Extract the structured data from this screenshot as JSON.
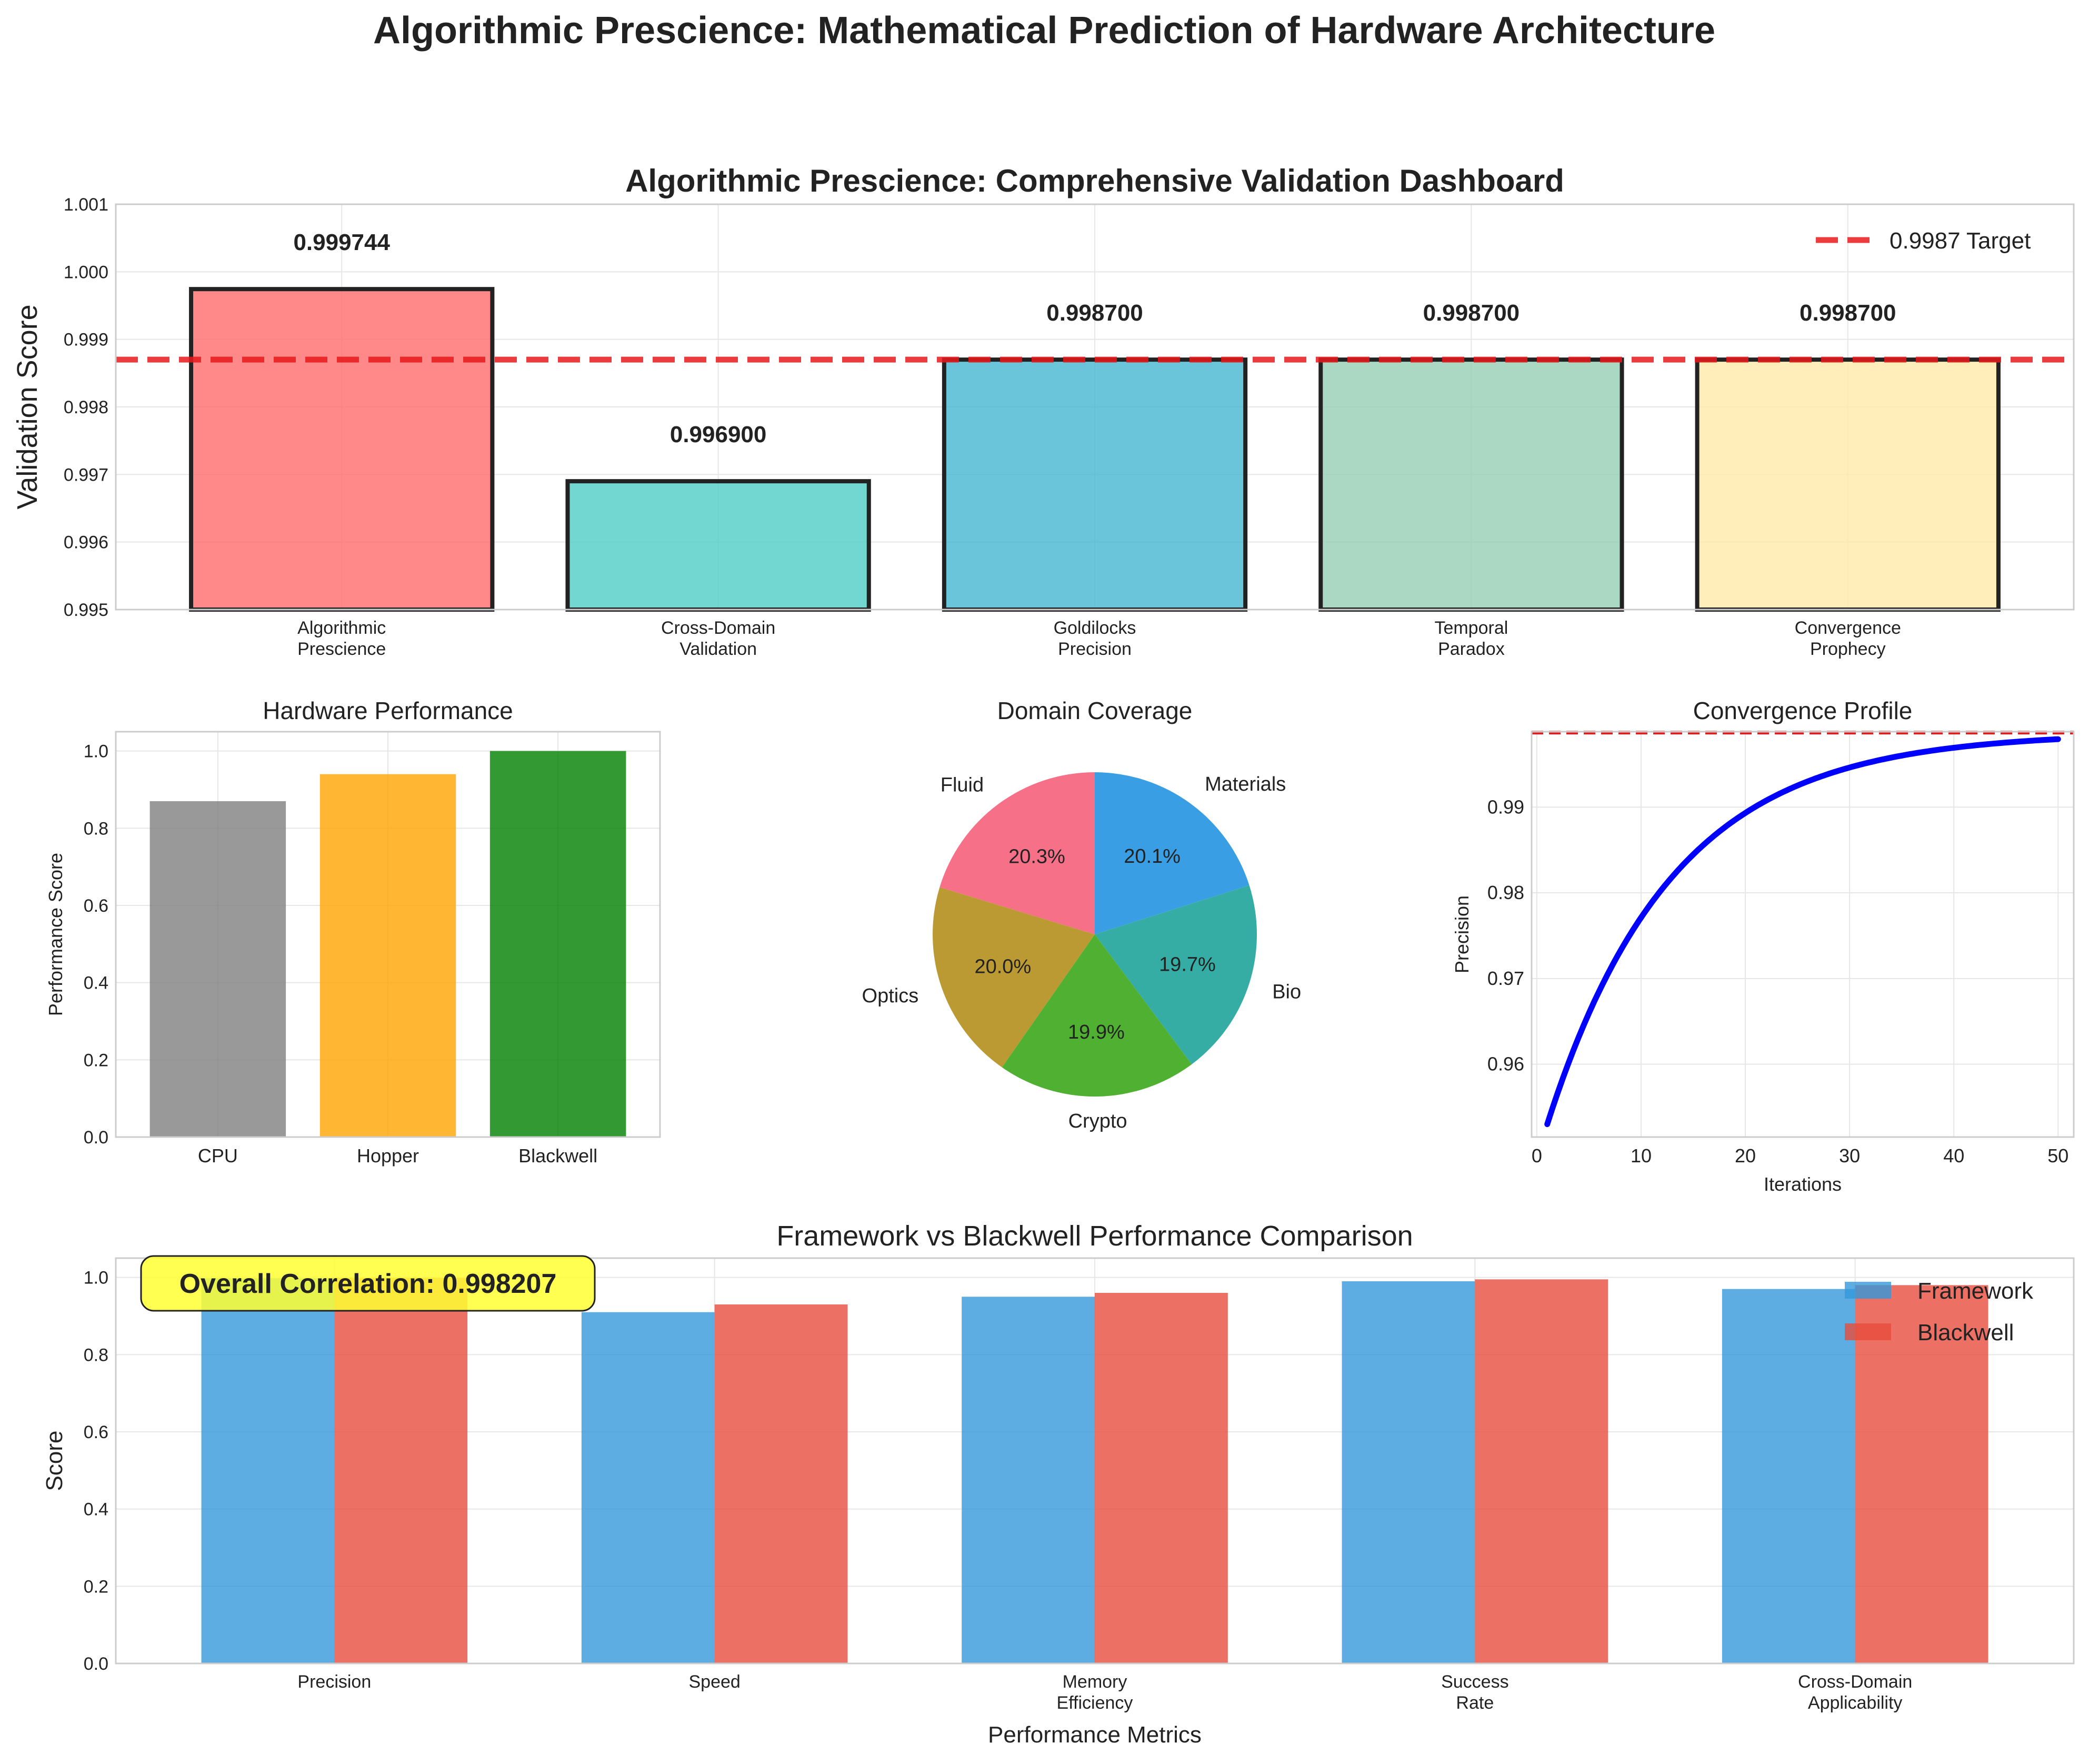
{
  "figure": {
    "title": "Algorithmic Prescience: Mathematical Prediction of Hardware Architecture"
  },
  "colors": {
    "target_line": "#e8191b",
    "framework": "#3498db",
    "blackwell": "#e74c3c",
    "curve": "#0000ff",
    "annotation_bg": "#ffff33"
  },
  "chart_data": [
    {
      "type": "bar",
      "title": "Algorithmic Prescience: Comprehensive Validation Dashboard",
      "categories": [
        "Algorithmic\nPrescience",
        "Cross-Domain\nValidation",
        "Goldilocks\nPrecision",
        "Temporal\nParadox",
        "Convergence\nProphecy"
      ],
      "values": [
        0.999744,
        0.9969,
        0.9987,
        0.9987,
        0.9987
      ],
      "value_labels": [
        "0.999744",
        "0.996900",
        "0.998700",
        "0.998700",
        "0.998700"
      ],
      "colors": [
        "#ff6b6b",
        "#4ecdc4",
        "#45b7d1",
        "#96ceb4",
        "#ffeaa7"
      ],
      "ylabel": "Validation Score",
      "ylim": [
        0.995,
        1.001
      ],
      "yticks": [
        0.995,
        0.996,
        0.997,
        0.998,
        0.999,
        1.0,
        1.001
      ],
      "ytick_labels": [
        "0.995",
        "0.996",
        "0.997",
        "0.998",
        "0.999",
        "1.000",
        "1.001"
      ],
      "target": 0.9987,
      "target_label": "0.9987 Target",
      "grid": true,
      "legend": "upper-right"
    },
    {
      "type": "bar",
      "title": "Hardware Performance",
      "categories": [
        "CPU",
        "Hopper",
        "Blackwell"
      ],
      "values": [
        0.87,
        0.94,
        1.0
      ],
      "colors": [
        "#808080",
        "#ffa500",
        "#008000"
      ],
      "ylabel": "Performance Score",
      "ylim": [
        0,
        1.05
      ],
      "yticks": [
        0,
        0.2,
        0.4,
        0.6,
        0.8,
        1.0
      ],
      "ytick_labels": [
        "0.0",
        "0.2",
        "0.4",
        "0.6",
        "0.8",
        "1.0"
      ],
      "grid": true
    },
    {
      "type": "pie",
      "title": "Domain Coverage",
      "labels": [
        "Materials",
        "Bio",
        "Crypto",
        "Optics",
        "Fluid"
      ],
      "values": [
        20.1,
        19.7,
        19.9,
        20.0,
        20.3
      ],
      "pct_labels": [
        "20.1%",
        "19.7%",
        "19.9%",
        "20.0%",
        "20.3%"
      ],
      "colors": [
        "#3a9ee4",
        "#36ada4",
        "#4fb031",
        "#bb9a34",
        "#f67088"
      ],
      "start_angle": 90,
      "direction": "clockwise"
    },
    {
      "type": "line",
      "title": "Convergence Profile",
      "xlabel": "Iterations",
      "ylabel": "Precision",
      "x_range": [
        1,
        50
      ],
      "curve": "0.9987 - 0.0457 * exp(-(x - 1) / 12)",
      "xlim": [
        -0.5,
        51.5
      ],
      "ylim": [
        0.9515,
        0.9988
      ],
      "xticks": [
        0,
        10,
        20,
        30,
        40,
        50
      ],
      "xtick_labels": [
        "0",
        "10",
        "20",
        "30",
        "40",
        "50"
      ],
      "yticks": [
        0.96,
        0.97,
        0.98,
        0.99
      ],
      "ytick_labels": [
        "0.96",
        "0.97",
        "0.98",
        "0.99"
      ],
      "target": 0.9987,
      "grid": true
    },
    {
      "type": "bar",
      "title": "Framework vs Blackwell Performance Comparison",
      "categories": [
        "Precision",
        "Speed",
        "Memory\nEfficiency",
        "Success\nRate",
        "Cross-Domain\nApplicability"
      ],
      "series": [
        {
          "name": "Framework",
          "values": [
            0.998,
            0.91,
            0.95,
            0.99,
            0.97
          ]
        },
        {
          "name": "Blackwell",
          "values": [
            0.999,
            0.93,
            0.96,
            0.995,
            0.98
          ]
        }
      ],
      "xlabel": "Performance Metrics",
      "ylabel": "Score",
      "ylim": [
        0,
        1.05
      ],
      "yticks": [
        0,
        0.2,
        0.4,
        0.6,
        0.8,
        1.0
      ],
      "ytick_labels": [
        "0.0",
        "0.2",
        "0.4",
        "0.6",
        "0.8",
        "1.0"
      ],
      "annotation": "Overall Correlation: 0.998207",
      "legend": "upper-right",
      "grid": true
    }
  ]
}
